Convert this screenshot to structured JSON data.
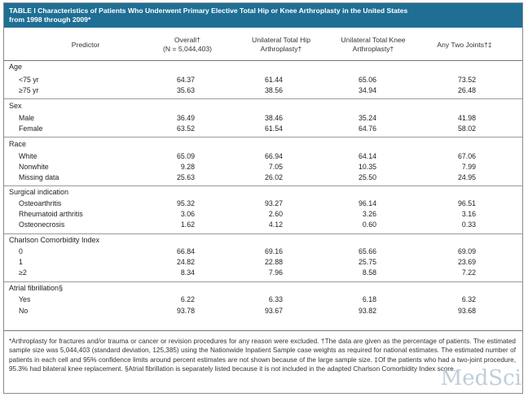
{
  "table": {
    "title_line1": "TABLE I Characteristics of Patients Who Underwent Primary Elective Total Hip or Knee Arthroplasty in the United States",
    "title_line2": "from 1998 through 2009*",
    "headers": {
      "predictor": "Predictor",
      "overall_1": "Overall†",
      "overall_2": "(N = 5,044,403)",
      "hip_1": "Unilateral Total Hip",
      "hip_2": "Arthroplasty†",
      "knee_1": "Unilateral Total Knee",
      "knee_2": "Arthroplasty†",
      "two": "Any Two Joints†‡"
    },
    "sections": [
      {
        "title": "Age",
        "rows": [
          {
            "label": "<75 yr",
            "overall": "64.37",
            "hip": "61.44",
            "knee": "65.06",
            "two": "73.52"
          },
          {
            "label": "≥75 yr",
            "overall": "35.63",
            "hip": "38.56",
            "knee": "34.94",
            "two": "26.48"
          }
        ]
      },
      {
        "title": "Sex",
        "rows": [
          {
            "label": "Male",
            "overall": "36.49",
            "hip": "38.46",
            "knee": "35.24",
            "two": "41.98"
          },
          {
            "label": "Female",
            "overall": "63.52",
            "hip": "61.54",
            "knee": "64.76",
            "two": "58.02"
          }
        ]
      },
      {
        "title": "Race",
        "rows": [
          {
            "label": "White",
            "overall": "65.09",
            "hip": "66.94",
            "knee": "64.14",
            "two": "67.06"
          },
          {
            "label": "Nonwhite",
            "overall": "9.28",
            "hip": "7.05",
            "knee": "10.35",
            "two": "7.99"
          },
          {
            "label": "Missing data",
            "overall": "25.63",
            "hip": "26.02",
            "knee": "25.50",
            "two": "24.95"
          }
        ]
      },
      {
        "title": "Surgical indication",
        "rows": [
          {
            "label": "Osteoarthritis",
            "overall": "95.32",
            "hip": "93.27",
            "knee": "96.14",
            "two": "96.51"
          },
          {
            "label": "Rheumatoid arthritis",
            "overall": "3.06",
            "hip": "2.60",
            "knee": "3.26",
            "two": "3.16"
          },
          {
            "label": "Osteonecrosis",
            "overall": "1.62",
            "hip": "4.12",
            "knee": "0.60",
            "two": "0.33"
          }
        ]
      },
      {
        "title": "Charlson Comorbidity Index",
        "rows": [
          {
            "label": "0",
            "overall": "66.84",
            "hip": "69.16",
            "knee": "65.66",
            "two": "69.09"
          },
          {
            "label": "1",
            "overall": "24.82",
            "hip": "22.88",
            "knee": "25.75",
            "two": "23.69"
          },
          {
            "label": "≥2",
            "overall": "8.34",
            "hip": "7.96",
            "knee": "8.58",
            "two": "7.22"
          }
        ]
      },
      {
        "title": "Atrial fibrillation§",
        "rows": [
          {
            "label": "Yes",
            "overall": "6.22",
            "hip": "6.33",
            "knee": "6.18",
            "two": "6.32"
          },
          {
            "label": "No",
            "overall": "93.78",
            "hip": "93.67",
            "knee": "93.82",
            "two": "93.68"
          }
        ]
      }
    ],
    "footnote": "*Arthroplasty for fractures and/or trauma or cancer or revision procedures for any reason were excluded. †The data are given as the percentage of patients. The estimated sample size was 5,044,403 (standard deviation, 125,385) using the Nationwide Inpatient Sample case weights as required for national estimates. The estimated number of patients in each cell and 95% confidence limits around percent estimates are not shown because of the large sample size. ‡Of the patients who had a two-joint procedure, 95.3% had bilateral knee replacement. §Atrial fibrillation is separately listed because it is not included in the adapted Charlson Comorbidity Index score."
  },
  "watermark": "MedSci"
}
